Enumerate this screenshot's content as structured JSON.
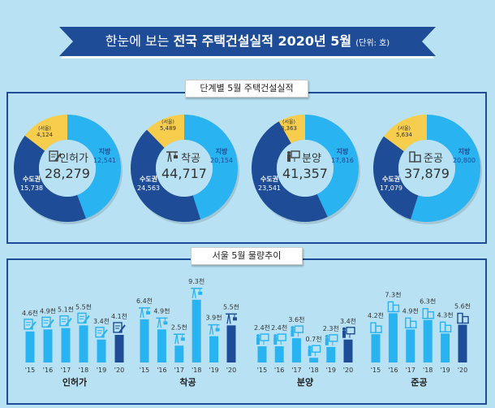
{
  "header": {
    "title_prefix": "한눈에 보는",
    "title_main": "전국 주택건설실적 2020년 5월",
    "unit": "(단위: 호)"
  },
  "section1": {
    "label": "단계별 5월 주택건설실적"
  },
  "section2": {
    "label": "서울 5월 물량추이"
  },
  "colors": {
    "local": "#29b3f0",
    "capital": "#1e4c96",
    "seoul": "#f6cd4c",
    "bar": "#29b3f0",
    "bar_current": "#1e4c96",
    "banner": "#1e4c96"
  },
  "chart_data": [
    {
      "type": "pie",
      "donuts": [
        {
          "name": "인허가",
          "icon": "document-pen-icon",
          "total": "28,279",
          "local_label": "지방",
          "local": 12541,
          "local_text": "12,541",
          "capital_label": "수도권",
          "capital": 15738,
          "capital_text": "15,738",
          "seoul_label": "(서울)",
          "seoul": 4124,
          "seoul_text": "4,124"
        },
        {
          "name": "착공",
          "icon": "crane-icon",
          "total": "44,717",
          "local_label": "지방",
          "local": 20154,
          "local_text": "20,154",
          "capital_label": "수도권",
          "capital": 24563,
          "capital_text": "24,563",
          "seoul_label": "(서울)",
          "seoul": 5489,
          "seoul_text": "5,489"
        },
        {
          "name": "분양",
          "icon": "presentation-icon",
          "total": "41,357",
          "local_label": "지방",
          "local": 17816,
          "local_text": "17,816",
          "capital_label": "수도권",
          "capital": 23541,
          "capital_text": "23,541",
          "seoul_label": "(서울)",
          "seoul": 3363,
          "seoul_text": "3,363"
        },
        {
          "name": "준공",
          "icon": "building-icon",
          "total": "37,879",
          "local_label": "지방",
          "local": 20800,
          "local_text": "20,800",
          "capital_label": "수도권",
          "capital": 17079,
          "capital_text": "17,079",
          "seoul_label": "(서울)",
          "seoul": 5634,
          "seoul_text": "5,634"
        }
      ]
    },
    {
      "type": "bar",
      "categories": [
        "'15",
        "'16",
        "'17",
        "'18",
        "'19",
        "'20"
      ],
      "groups": [
        {
          "name": "인허가",
          "icon": "document-pen-icon",
          "values": [
            4.6,
            4.9,
            5.1,
            5.5,
            3.4,
            4.1
          ],
          "labels": [
            "4.6천",
            "4.9천",
            "5.1천",
            "5.5천",
            "3.4천",
            "4.1천"
          ]
        },
        {
          "name": "착공",
          "icon": "crane-icon",
          "values": [
            6.4,
            4.9,
            2.5,
            9.3,
            3.9,
            5.5
          ],
          "labels": [
            "6.4천",
            "4.9천",
            "2.5천",
            "9.3천",
            "3.9천",
            "5.5천"
          ]
        },
        {
          "name": "분양",
          "icon": "presentation-icon",
          "values": [
            2.4,
            2.4,
            3.6,
            0.7,
            2.3,
            3.4
          ],
          "labels": [
            "2.4천",
            "2.4천",
            "3.6천",
            "0.7천",
            "2.3천",
            "3.4천"
          ]
        },
        {
          "name": "준공",
          "icon": "building-icon",
          "values": [
            4.2,
            7.3,
            4.9,
            6.3,
            4.3,
            5.6
          ],
          "labels": [
            "4.2천",
            "7.3천",
            "4.9천",
            "6.3천",
            "4.3천",
            "5.6천"
          ]
        }
      ]
    }
  ]
}
